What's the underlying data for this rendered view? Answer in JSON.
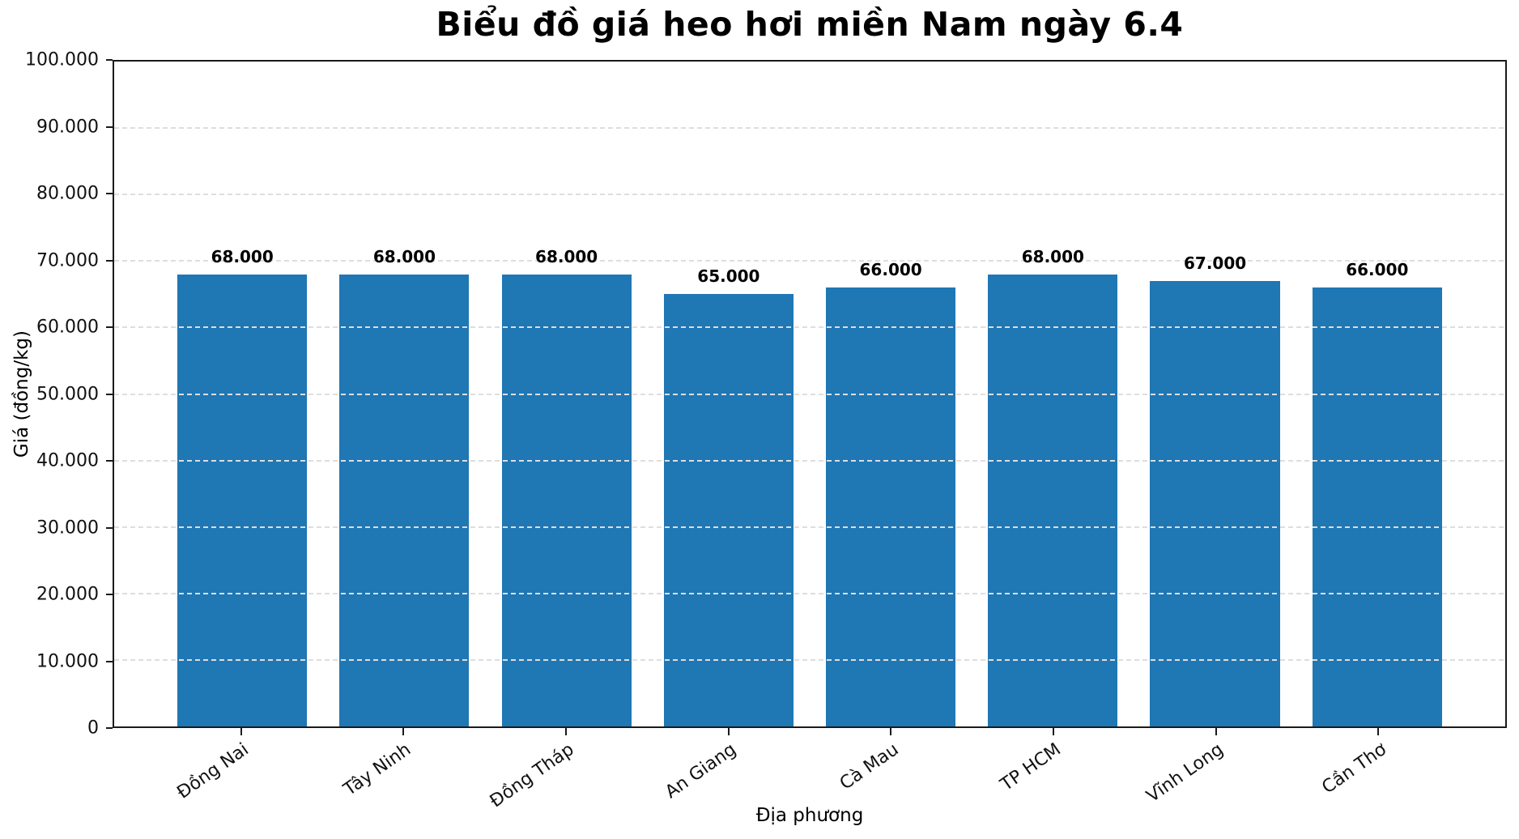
{
  "chart_data": {
    "type": "bar",
    "title": "Biểu đồ giá heo hơi miền Nam ngày 6.4",
    "xlabel": "Địa phương",
    "ylabel": "Giá (đồng/kg)",
    "categories": [
      "Đồng Nai",
      "Tây Ninh",
      "Đồng Tháp",
      "An Giang",
      "Cà Mau",
      "TP HCM",
      "Vĩnh Long",
      "Cần Thơ"
    ],
    "values": [
      68000,
      68000,
      68000,
      65000,
      66000,
      68000,
      67000,
      66000
    ],
    "value_labels": [
      "68.000",
      "68.000",
      "68.000",
      "65.000",
      "66.000",
      "68.000",
      "67.000",
      "66.000"
    ],
    "ylim": [
      0,
      100000
    ],
    "ytick_values": [
      0,
      10000,
      20000,
      30000,
      40000,
      50000,
      60000,
      70000,
      80000,
      90000,
      100000
    ],
    "ytick_labels": [
      "0",
      "10.000",
      "20.000",
      "30.000",
      "40.000",
      "50.000",
      "60.000",
      "70.000",
      "80.000",
      "90.000",
      "100.000"
    ],
    "bar_color": "#1f77b4",
    "spine_color": "#1a1a1a",
    "grid": "horizontal-dashed",
    "gridline_color": "#dedede",
    "legend": "none"
  }
}
